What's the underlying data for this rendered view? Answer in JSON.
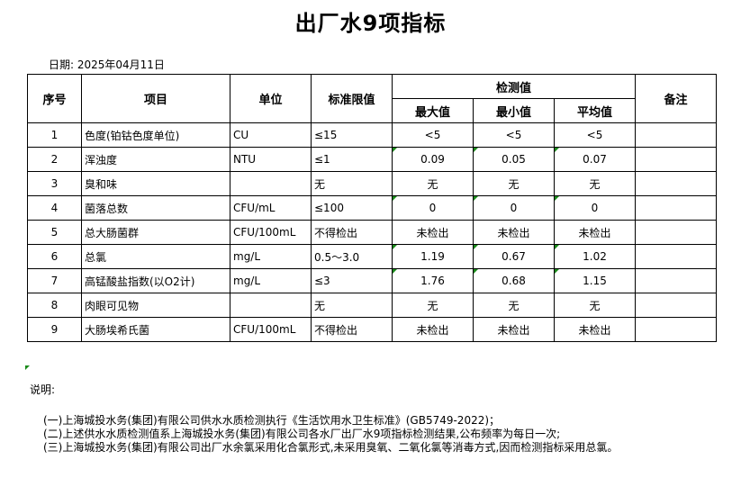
{
  "title": "出厂水9项指标",
  "date": "日期: 2025年04月11日",
  "headers": {
    "seq": "序号",
    "item": "项目",
    "unit": "单位",
    "limit": "标准限值",
    "detected": "检测值",
    "max": "最大值",
    "min": "最小值",
    "avg": "平均值",
    "remark": "备注"
  },
  "rows": [
    {
      "seq": "1",
      "item": "色度(铂钴色度单位)",
      "unit": "CU",
      "limit": "≤15",
      "max": "<5",
      "min": "<5",
      "avg": "<5",
      "remark": ""
    },
    {
      "seq": "2",
      "item": "浑浊度",
      "unit": "NTU",
      "limit": "≤1",
      "max": "0.09",
      "min": "0.05",
      "avg": "0.07",
      "remark": ""
    },
    {
      "seq": "3",
      "item": "臭和味",
      "unit": "",
      "limit": "无",
      "max": "无",
      "min": "无",
      "avg": "无",
      "remark": ""
    },
    {
      "seq": "4",
      "item": "菌落总数",
      "unit": "CFU/mL",
      "limit": "≤100",
      "max": "0",
      "min": "0",
      "avg": "0",
      "remark": ""
    },
    {
      "seq": "5",
      "item": "总大肠菌群",
      "unit": "CFU/100mL",
      "limit": "不得检出",
      "max": "未检出",
      "min": "未检出",
      "avg": "未检出",
      "remark": ""
    },
    {
      "seq": "6",
      "item": "总氯",
      "unit": "mg/L",
      "limit": "0.5～3.0",
      "max": "1.19",
      "min": "0.67",
      "avg": "1.02",
      "remark": ""
    },
    {
      "seq": "7",
      "item": "高锰酸盐指数(以O2计)",
      "unit": "mg/L",
      "limit": "≤3",
      "max": "1.76",
      "min": "0.68",
      "avg": "1.15",
      "remark": ""
    },
    {
      "seq": "8",
      "item": "肉眼可见物",
      "unit": "",
      "limit": "无",
      "max": "无",
      "min": "无",
      "avg": "无",
      "remark": ""
    },
    {
      "seq": "9",
      "item": "大肠埃希氏菌",
      "unit": "CFU/100mL",
      "limit": "不得检出",
      "max": "未检出",
      "min": "未检出",
      "avg": "未检出",
      "remark": ""
    }
  ],
  "notes": {
    "label": "说明:",
    "lines": [
      "(一)上海城投水务(集团)有限公司供水水质检测执行《生活饮用水卫生标准》(GB5749-2022)；",
      "(二)上述供水水质检测值系上海城投水务(集团)有限公司各水厂出厂水9项指标检测结果,公布频率为每日一次;",
      "(三)上海城投水务(集团)有限公司出厂水余氯采用化合氯形式,未采用臭氧、二氧化氯等消毒方式,因而检测指标采用总氯。"
    ]
  }
}
